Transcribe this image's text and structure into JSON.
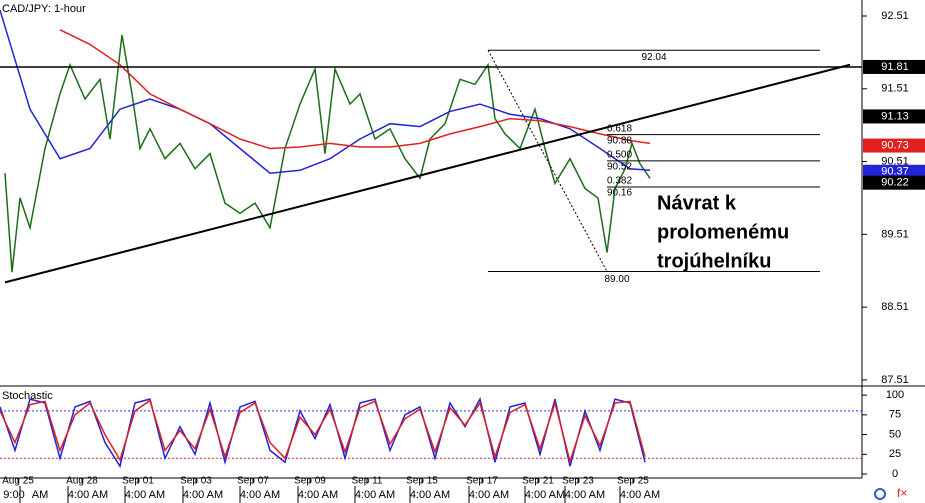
{
  "chart_data": [
    {
      "type": "price",
      "title": "CAD/JPY: 1-hour",
      "xlim": [
        0,
        862
      ],
      "ylim": [
        87.44,
        92.73
      ],
      "yticks": [
        92.51,
        91.51,
        90.51,
        89.51,
        88.51,
        87.51
      ],
      "series": [
        {
          "name": "Price",
          "color": "#1a6e1a",
          "x": [
            5,
            12,
            20,
            30,
            45,
            60,
            70,
            85,
            100,
            110,
            122,
            132,
            140,
            150,
            165,
            180,
            195,
            210,
            225,
            240,
            255,
            270,
            285,
            300,
            315,
            325,
            335,
            350,
            360,
            375,
            390,
            405,
            420,
            430,
            445,
            460,
            475,
            488,
            495,
            505,
            520,
            535,
            545,
            555,
            570,
            585,
            598,
            607,
            615,
            625,
            632,
            640,
            650
          ],
          "values": [
            90.35,
            88.99,
            90.01,
            89.6,
            90.69,
            91.44,
            91.84,
            91.37,
            91.64,
            90.82,
            92.25,
            91.44,
            90.69,
            90.96,
            90.55,
            90.76,
            90.41,
            90.62,
            89.94,
            89.8,
            89.94,
            89.6,
            90.69,
            91.3,
            91.78,
            90.62,
            91.78,
            91.3,
            91.44,
            90.82,
            90.96,
            90.55,
            90.28,
            90.82,
            91.03,
            91.64,
            91.57,
            91.84,
            91.1,
            90.89,
            90.69,
            91.23,
            90.69,
            90.21,
            90.55,
            90.14,
            90.01,
            89.26,
            90.14,
            90.41,
            90.76,
            90.48,
            90.28
          ]
        },
        {
          "name": "Fast MA",
          "color": "#2323d8",
          "x": [
            0,
            30,
            60,
            90,
            120,
            150,
            180,
            210,
            240,
            270,
            300,
            330,
            360,
            390,
            420,
            450,
            480,
            510,
            540,
            570,
            600,
            630,
            650
          ],
          "values": [
            92.59,
            91.23,
            90.55,
            90.69,
            91.23,
            91.37,
            91.23,
            91.03,
            90.69,
            90.35,
            90.39,
            90.55,
            90.82,
            91.03,
            90.99,
            91.2,
            91.3,
            91.16,
            91.1,
            90.96,
            90.69,
            90.41,
            90.39
          ]
        },
        {
          "name": "Slow MA",
          "color": "#e02020",
          "x": [
            60,
            90,
            120,
            150,
            180,
            210,
            240,
            270,
            300,
            330,
            360,
            390,
            420,
            450,
            480,
            510,
            540,
            570,
            600,
            630,
            650
          ],
          "values": [
            92.32,
            92.12,
            91.84,
            91.44,
            91.23,
            91.03,
            90.82,
            90.69,
            90.71,
            90.76,
            90.71,
            90.71,
            90.76,
            90.89,
            90.99,
            91.1,
            91.07,
            90.99,
            90.89,
            90.8,
            90.76
          ]
        }
      ],
      "trendline": {
        "x": [
          5,
          850
        ],
        "values": [
          88.85,
          91.84
        ]
      },
      "fib": {
        "x": [
          488,
          820
        ],
        "low_x": 607,
        "high": 92.04,
        "low": {
          "value": 89,
          "label": "89.00"
        },
        "levels": [
          {
            "ratio": 0.618,
            "price": 90.88
          },
          {
            "ratio": {
              "value": 0.5,
              "label": "0.500"
            },
            "price": 90.52
          },
          {
            "ratio": 0.382,
            "price": 90.16
          }
        ]
      },
      "price_markers": [
        {
          "value": 91.81,
          "color": "#000000",
          "line": true
        },
        {
          "value": 91.13,
          "color": "#000000"
        },
        {
          "value": 90.73,
          "color": "#e02020"
        },
        {
          "value": 90.37,
          "color": "#2323d8"
        },
        {
          "value": 90.22,
          "color": "#000000"
        }
      ],
      "annotation": [
        "Návrat k",
        "prolomenému",
        "trojúhelníku"
      ]
    },
    {
      "type": "stochastic",
      "title": "Stochastic",
      "xlim": [
        0,
        862
      ],
      "ylim": [
        -5,
        109
      ],
      "yticks": [
        100,
        75,
        50,
        25,
        0
      ],
      "levels": [
        {
          "value": 80,
          "color": "#3333cc"
        },
        {
          "value": 20,
          "color": "#cc3333"
        }
      ],
      "series": [
        {
          "name": "%K",
          "color": "#2323d8",
          "x": [
            0,
            15,
            30,
            45,
            60,
            75,
            90,
            105,
            120,
            135,
            150,
            165,
            180,
            195,
            210,
            225,
            240,
            255,
            270,
            285,
            300,
            315,
            330,
            345,
            360,
            375,
            390,
            405,
            420,
            435,
            450,
            465,
            480,
            495,
            510,
            525,
            540,
            555,
            570,
            585,
            600,
            615,
            630,
            645
          ],
          "values": [
            85,
            30,
            95,
            90,
            20,
            85,
            92,
            40,
            10,
            90,
            95,
            20,
            60,
            25,
            90,
            15,
            85,
            92,
            30,
            15,
            80,
            45,
            88,
            20,
            90,
            95,
            30,
            75,
            85,
            20,
            90,
            60,
            95,
            15,
            85,
            90,
            25,
            95,
            10,
            80,
            30,
            95,
            90,
            15
          ]
        },
        {
          "name": "%D",
          "color": "#e02020",
          "x": [
            0,
            15,
            30,
            45,
            60,
            75,
            90,
            105,
            120,
            135,
            150,
            165,
            180,
            195,
            210,
            225,
            240,
            255,
            270,
            285,
            300,
            315,
            330,
            345,
            360,
            375,
            390,
            405,
            420,
            435,
            450,
            465,
            480,
            495,
            510,
            525,
            540,
            555,
            570,
            585,
            600,
            615,
            630,
            645
          ],
          "values": [
            80,
            40,
            88,
            92,
            30,
            75,
            90,
            50,
            18,
            80,
            93,
            30,
            55,
            32,
            82,
            22,
            78,
            90,
            40,
            20,
            72,
            50,
            82,
            28,
            84,
            92,
            38,
            70,
            82,
            28,
            84,
            62,
            90,
            22,
            78,
            88,
            32,
            90,
            16,
            74,
            36,
            90,
            92,
            22
          ]
        }
      ],
      "xticks": [
        {
          "value": 18,
          "label": "Aug 25"
        },
        {
          "value": 82,
          "label": "Aug 28"
        },
        {
          "value": 138,
          "label": "Sep 01"
        },
        {
          "value": 196,
          "label": "Sep 03"
        },
        {
          "value": 253,
          "label": "Sep 07"
        },
        {
          "value": 310,
          "label": "Sep 09"
        },
        {
          "value": 367,
          "label": "Sep 11"
        },
        {
          "value": 422,
          "label": "Sep 15"
        },
        {
          "value": 482,
          "label": "Sep 17"
        },
        {
          "value": 538,
          "label": "Sep 21"
        },
        {
          "value": 578,
          "label": "Sep 23"
        },
        {
          "value": 633,
          "label": "Sep 25"
        }
      ],
      "time_labels": [
        {
          "value": 14,
          "label": "9:00"
        },
        {
          "value": 40,
          "label": "AM"
        },
        {
          "value": 88,
          "label": "4:00 AM"
        },
        {
          "value": 145,
          "label": "4:00 AM"
        },
        {
          "value": 203,
          "label": "4:00 AM"
        },
        {
          "value": 260,
          "label": "4:00 AM"
        },
        {
          "value": 318,
          "label": "4:00 AM"
        },
        {
          "value": 375,
          "label": "4:00 AM"
        },
        {
          "value": 430,
          "label": "4:00 AM"
        },
        {
          "value": 489,
          "label": "4:00 AM"
        },
        {
          "value": 545,
          "label": "4:00 AM"
        },
        {
          "value": 585,
          "label": "4:00 AM"
        },
        {
          "value": 640,
          "label": "4:00 AM"
        }
      ]
    }
  ]
}
